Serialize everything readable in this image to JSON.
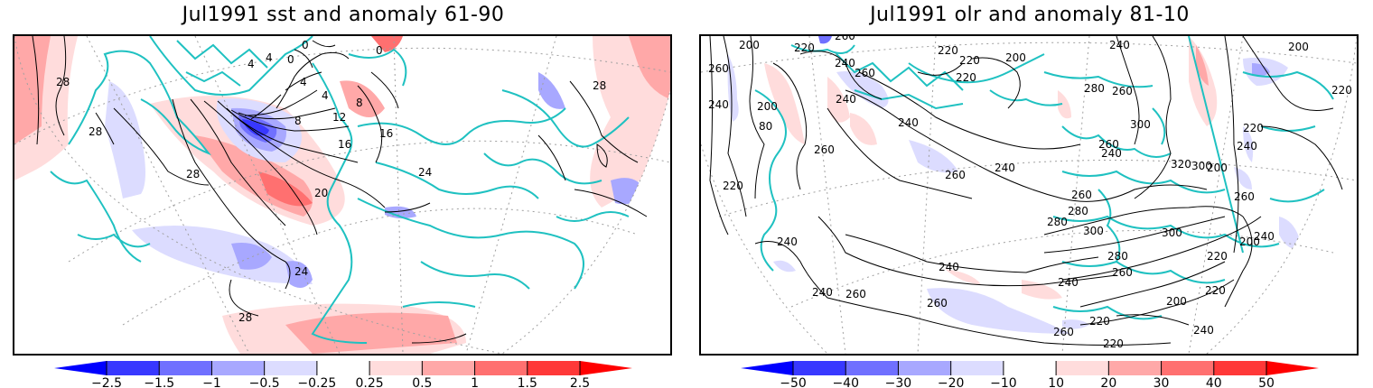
{
  "panels": [
    {
      "title": "Jul1991 sst and anomaly 61-90",
      "variable": "sst",
      "contour_labels": [
        "28",
        "28",
        "28",
        "4",
        "4",
        "0",
        "0",
        "0",
        "4",
        "4",
        "8",
        "12",
        "16",
        "16",
        "8",
        "20",
        "24",
        "24",
        "28",
        "28"
      ],
      "colorbar": {
        "levels": [
          "-2.5",
          "-1.5",
          "-1",
          "-0.5",
          "-0.25",
          "0.25",
          "0.5",
          "1",
          "1.5",
          "2.5"
        ],
        "colors": [
          "#0000ff",
          "#3838ff",
          "#7070ff",
          "#a8a8ff",
          "#dcdcff",
          "#ffffff",
          "#ffdcdc",
          "#ffa8a8",
          "#ff7070",
          "#ff3838",
          "#ff0000"
        ]
      }
    },
    {
      "title": "Jul1991 olr and anomaly 81-10",
      "variable": "olr",
      "contour_labels": [
        "200",
        "220",
        "260",
        "240",
        "260",
        "220",
        "220",
        "200",
        "220",
        "240",
        "200",
        "80",
        "260",
        "260",
        "240",
        "240",
        "260",
        "220",
        "240",
        "280",
        "260",
        "300",
        "260",
        "240",
        "240",
        "320",
        "300",
        "200",
        "200",
        "220",
        "240",
        "260",
        "220",
        "240",
        "240",
        "260",
        "260",
        "280",
        "280",
        "300",
        "300",
        "280",
        "260",
        "220",
        "240",
        "200",
        "200",
        "220",
        "240",
        "220",
        "240",
        "260",
        "240",
        "220",
        "260"
      ],
      "colorbar": {
        "levels": [
          "-50",
          "-40",
          "-30",
          "-20",
          "-10",
          "10",
          "20",
          "30",
          "40",
          "50"
        ],
        "colors": [
          "#0000ff",
          "#3838ff",
          "#7070ff",
          "#a8a8ff",
          "#dcdcff",
          "#ffffff",
          "#ffdcdc",
          "#ffa8a8",
          "#ff7070",
          "#ff3838",
          "#ff0000"
        ]
      }
    }
  ],
  "style": {
    "coast_color": "#1fc1c1",
    "contour_color": "#000000",
    "grid_color": "#a0a0a0"
  }
}
